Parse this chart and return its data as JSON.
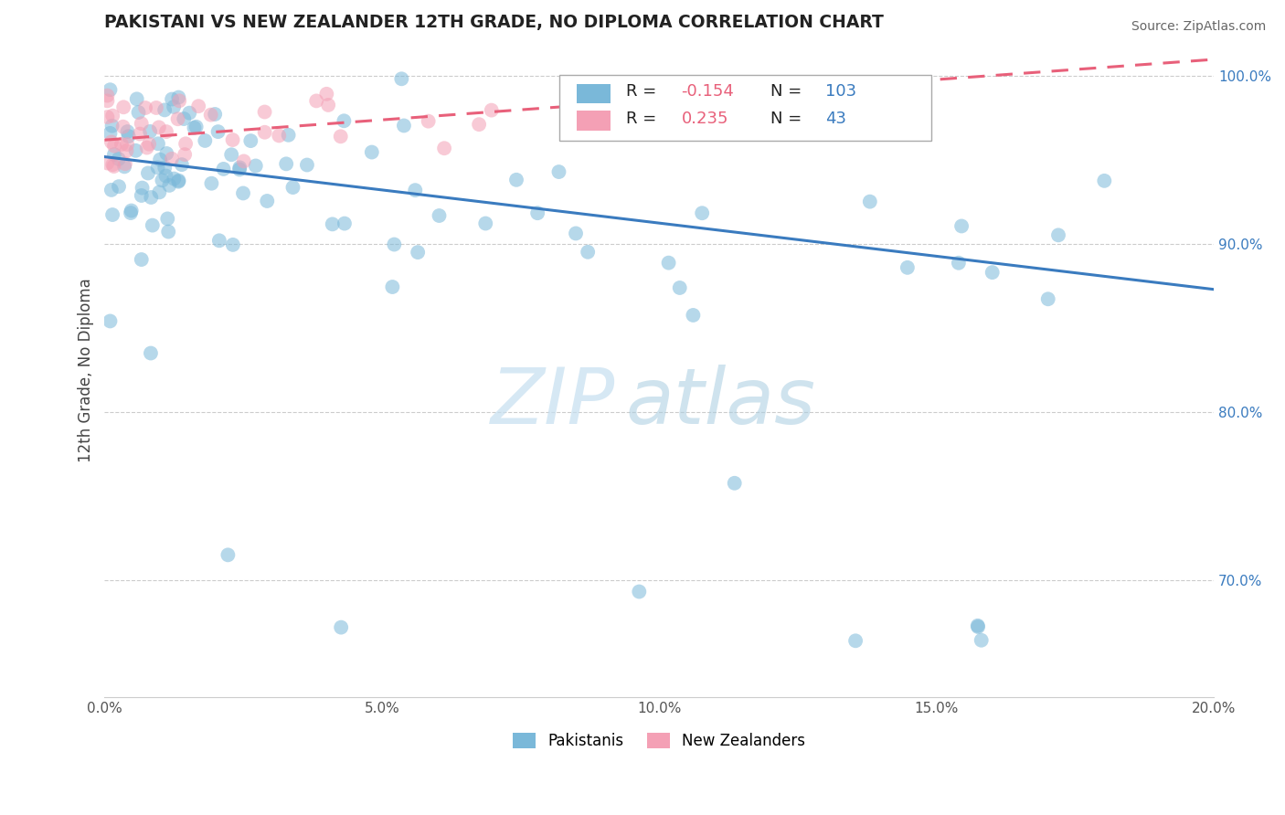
{
  "title": "PAKISTANI VS NEW ZEALANDER 12TH GRADE, NO DIPLOMA CORRELATION CHART",
  "source": "Source: ZipAtlas.com",
  "ylabel_label": "12th Grade, No Diploma",
  "xlim": [
    0.0,
    0.2
  ],
  "ylim": [
    0.63,
    1.02
  ],
  "xticks": [
    0.0,
    0.05,
    0.1,
    0.15,
    0.2
  ],
  "xticklabels": [
    "0.0%",
    "5.0%",
    "10.0%",
    "15.0%",
    "20.0%"
  ],
  "yticks": [
    0.7,
    0.8,
    0.9,
    1.0
  ],
  "yticklabels": [
    "70.0%",
    "80.0%",
    "90.0%",
    "100.0%"
  ],
  "blue_color": "#7ab8d9",
  "pink_color": "#f4a0b5",
  "blue_line_color": "#3a7bbf",
  "pink_line_color": "#e8607a",
  "R_blue": -0.154,
  "N_blue": 103,
  "R_pink": 0.235,
  "N_pink": 43,
  "legend_label_blue": "Pakistanis",
  "legend_label_pink": "New Zealanders",
  "blue_trend_x": [
    0.0,
    0.2
  ],
  "blue_trend_y": [
    0.952,
    0.873
  ],
  "pink_trend_x": [
    0.0,
    0.2
  ],
  "pink_trend_y": [
    0.962,
    1.01
  ],
  "watermark_zip": "ZIP",
  "watermark_atlas": "atlas"
}
